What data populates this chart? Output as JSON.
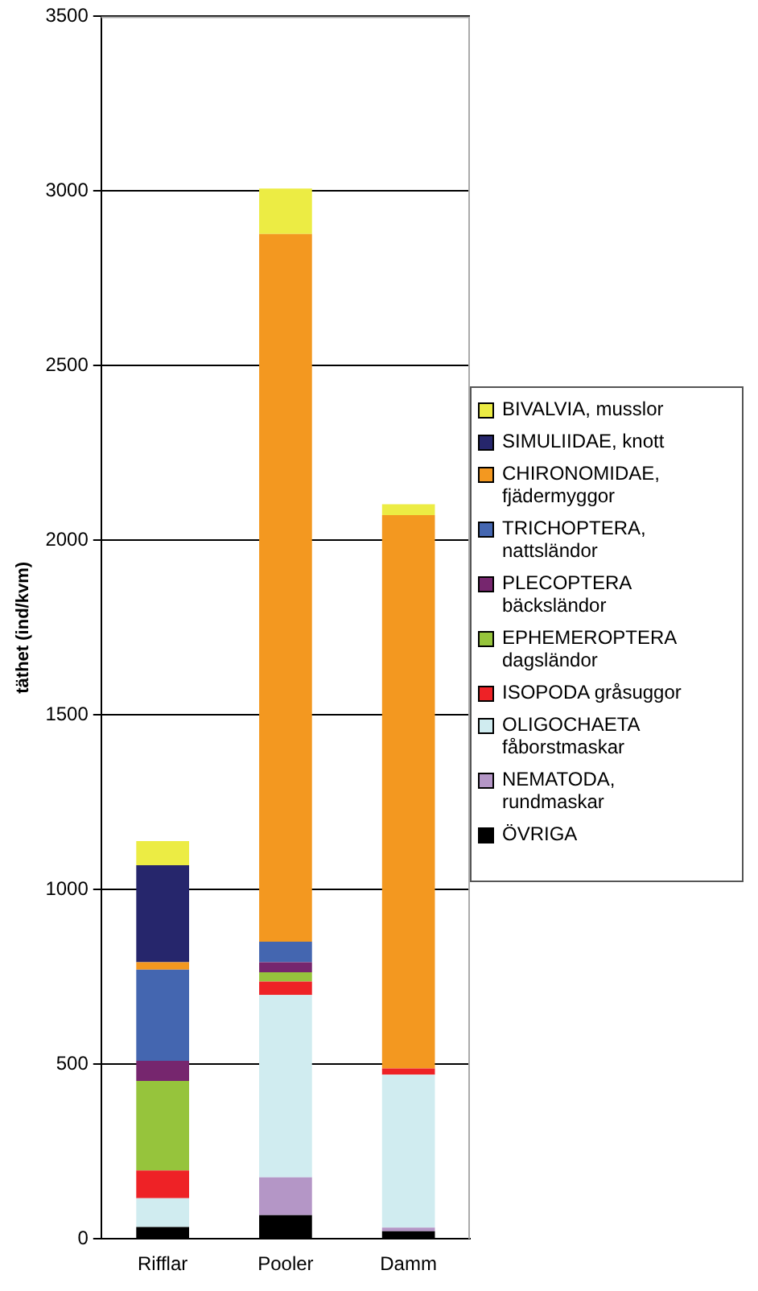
{
  "chart_data": {
    "type": "bar",
    "ylabel": "täthet (ind/kvm)",
    "categories": [
      "Rifflar",
      "Pooler",
      "Damm"
    ],
    "stacked": true,
    "ylim": [
      0,
      3500
    ],
    "yticks": [
      0,
      500,
      1000,
      1500,
      2000,
      2500,
      3000,
      3500
    ],
    "grid": "y",
    "legend": "right",
    "series": [
      {
        "name": "ÖVRIGA",
        "color": "#000000",
        "values": [
          34,
          68,
          22
        ]
      },
      {
        "name": "NEMATODA, rundmaskar",
        "color": "#b496c6",
        "values": [
          0,
          108,
          10
        ]
      },
      {
        "name": "OLIGOCHAETA fåborstmaskar",
        "color": "#d0ecf0",
        "values": [
          82,
          522,
          438
        ]
      },
      {
        "name": "ISOPODA gråsuggor",
        "color": "#ee2226",
        "values": [
          80,
          39,
          18
        ]
      },
      {
        "name": "EPHEMEROPTERA dagsländor",
        "color": "#96c43c",
        "values": [
          256,
          26,
          0
        ]
      },
      {
        "name": "PLECOPTERA bäcksländor",
        "color": "#76266e",
        "values": [
          58,
          29,
          0
        ]
      },
      {
        "name": "TRICHOPTERA, nattsländor",
        "color": "#4466b0",
        "values": [
          261,
          59,
          0
        ]
      },
      {
        "name": "CHIRONOMIDAE, fjädermyggor",
        "color": "#f39820",
        "values": [
          21,
          2026,
          1584
        ]
      },
      {
        "name": "SIMULIIDAE, knott",
        "color": "#26266c",
        "values": [
          278,
          0,
          0
        ]
      },
      {
        "name": "BIVALVIA, musslor",
        "color": "#ecec44",
        "values": [
          69,
          130,
          31
        ]
      }
    ]
  }
}
